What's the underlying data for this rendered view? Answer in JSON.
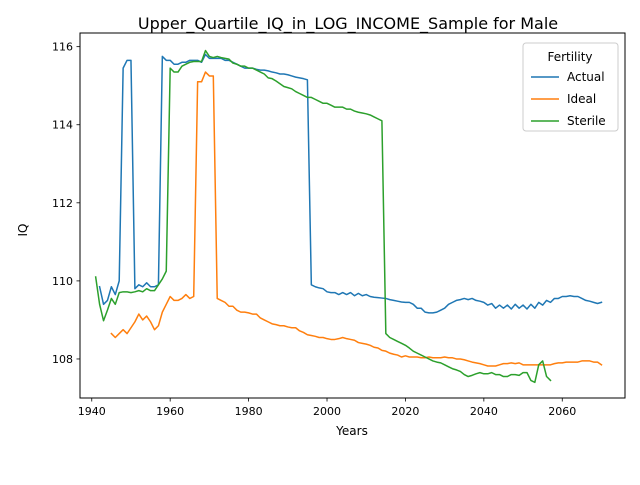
{
  "chart_data": {
    "type": "line",
    "title": "Upper_Quartile_IQ_in_LOG_INCOME_Sample for Male",
    "xlabel": "Years",
    "ylabel": "IQ",
    "xlim": [
      1937,
      2076
    ],
    "ylim": [
      107.0,
      116.35
    ],
    "x_ticks": [
      1940,
      1960,
      1980,
      2000,
      2020,
      2040,
      2060
    ],
    "y_ticks": [
      108,
      110,
      112,
      114,
      116
    ],
    "grid": false,
    "legend": {
      "title": "Fertility",
      "placement": "top-right"
    },
    "colors": {
      "Actual": "#1f77b4",
      "Ideal": "#ff7f0e",
      "Sterile": "#2ca02c"
    },
    "series": [
      {
        "name": "Actual",
        "color": "#1f77b4",
        "x": [
          1942,
          1943,
          1944,
          1945,
          1946,
          1947,
          1948,
          1949,
          1950,
          1951,
          1952,
          1953,
          1954,
          1955,
          1956,
          1957,
          1958,
          1959,
          1960,
          1961,
          1962,
          1963,
          1964,
          1965,
          1966,
          1967,
          1968,
          1969,
          1970,
          1971,
          1972,
          1973,
          1974,
          1975,
          1976,
          1977,
          1978,
          1979,
          1980,
          1981,
          1982,
          1983,
          1984,
          1985,
          1986,
          1987,
          1988,
          1989,
          1990,
          1991,
          1992,
          1993,
          1994,
          1995,
          1996,
          1997,
          1998,
          1999,
          2000,
          2001,
          2002,
          2003,
          2004,
          2005,
          2006,
          2007,
          2008,
          2009,
          2010,
          2011,
          2012,
          2013,
          2014,
          2015,
          2016,
          2017,
          2018,
          2019,
          2020,
          2021,
          2022,
          2023,
          2024,
          2025,
          2026,
          2027,
          2028,
          2029,
          2030,
          2031,
          2032,
          2033,
          2034,
          2035,
          2036,
          2037,
          2038,
          2039,
          2040,
          2041,
          2042,
          2043,
          2044,
          2045,
          2046,
          2047,
          2048,
          2049,
          2050,
          2051,
          2052,
          2053,
          2054,
          2055,
          2056,
          2057,
          2058,
          2059,
          2060,
          2061,
          2062,
          2063,
          2064,
          2065,
          2066,
          2067,
          2068,
          2069,
          2070
        ],
        "values": [
          109.85,
          109.4,
          109.5,
          109.85,
          109.65,
          110.0,
          115.45,
          115.65,
          115.65,
          109.8,
          109.9,
          109.85,
          109.95,
          109.85,
          109.85,
          109.9,
          115.75,
          115.65,
          115.65,
          115.55,
          115.55,
          115.6,
          115.6,
          115.65,
          115.65,
          115.65,
          115.6,
          115.8,
          115.7,
          115.7,
          115.7,
          115.7,
          115.65,
          115.65,
          115.6,
          115.55,
          115.5,
          115.45,
          115.45,
          115.45,
          115.42,
          115.4,
          115.4,
          115.38,
          115.35,
          115.33,
          115.3,
          115.3,
          115.28,
          115.25,
          115.22,
          115.2,
          115.18,
          115.15,
          109.9,
          109.85,
          109.82,
          109.8,
          109.72,
          109.7,
          109.7,
          109.65,
          109.7,
          109.65,
          109.7,
          109.62,
          109.68,
          109.62,
          109.65,
          109.6,
          109.58,
          109.57,
          109.56,
          109.55,
          109.52,
          109.5,
          109.48,
          109.46,
          109.45,
          109.45,
          109.4,
          109.3,
          109.3,
          109.2,
          109.18,
          109.18,
          109.2,
          109.25,
          109.3,
          109.4,
          109.45,
          109.5,
          109.52,
          109.55,
          109.52,
          109.55,
          109.5,
          109.48,
          109.45,
          109.38,
          109.42,
          109.3,
          109.38,
          109.3,
          109.38,
          109.28,
          109.4,
          109.3,
          109.38,
          109.28,
          109.4,
          109.3,
          109.45,
          109.38,
          109.5,
          109.45,
          109.55,
          109.55,
          109.6,
          109.6,
          109.62,
          109.6,
          109.6,
          109.55,
          109.5,
          109.48,
          109.45,
          109.42,
          109.45
        ]
      },
      {
        "name": "Ideal",
        "color": "#ff7f0e",
        "x": [
          1945,
          1946,
          1947,
          1948,
          1949,
          1950,
          1951,
          1952,
          1953,
          1954,
          1955,
          1956,
          1957,
          1958,
          1959,
          1960,
          1961,
          1962,
          1963,
          1964,
          1965,
          1966,
          1967,
          1968,
          1969,
          1970,
          1971,
          1972,
          1973,
          1974,
          1975,
          1976,
          1977,
          1978,
          1979,
          1980,
          1981,
          1982,
          1983,
          1984,
          1985,
          1986,
          1987,
          1988,
          1989,
          1990,
          1991,
          1992,
          1993,
          1994,
          1995,
          1996,
          1997,
          1998,
          1999,
          2000,
          2001,
          2002,
          2003,
          2004,
          2005,
          2006,
          2007,
          2008,
          2009,
          2010,
          2011,
          2012,
          2013,
          2014,
          2015,
          2016,
          2017,
          2018,
          2019,
          2020,
          2021,
          2022,
          2023,
          2024,
          2025,
          2026,
          2027,
          2028,
          2029,
          2030,
          2031,
          2032,
          2033,
          2034,
          2035,
          2036,
          2037,
          2038,
          2039,
          2040,
          2041,
          2042,
          2043,
          2044,
          2045,
          2046,
          2047,
          2048,
          2049,
          2050,
          2051,
          2052,
          2053,
          2054,
          2055,
          2056,
          2057,
          2058,
          2059,
          2060,
          2061,
          2062,
          2063,
          2064,
          2065,
          2066,
          2067,
          2068,
          2069,
          2070
        ],
        "values": [
          108.65,
          108.55,
          108.65,
          108.75,
          108.65,
          108.8,
          108.95,
          109.15,
          109.0,
          109.1,
          108.95,
          108.75,
          108.85,
          109.2,
          109.4,
          109.6,
          109.5,
          109.5,
          109.55,
          109.65,
          109.55,
          109.6,
          115.1,
          115.1,
          115.35,
          115.25,
          115.25,
          109.55,
          109.5,
          109.45,
          109.35,
          109.35,
          109.25,
          109.2,
          109.2,
          109.18,
          109.15,
          109.15,
          109.05,
          109.0,
          108.95,
          108.9,
          108.88,
          108.85,
          108.85,
          108.82,
          108.8,
          108.8,
          108.72,
          108.68,
          108.62,
          108.6,
          108.58,
          108.55,
          108.55,
          108.52,
          108.5,
          108.5,
          108.52,
          108.55,
          108.52,
          108.5,
          108.48,
          108.42,
          108.4,
          108.38,
          108.35,
          108.3,
          108.28,
          108.22,
          108.2,
          108.15,
          108.12,
          108.1,
          108.05,
          108.08,
          108.05,
          108.05,
          108.05,
          108.03,
          108.03,
          108.05,
          108.03,
          108.03,
          108.03,
          108.05,
          108.03,
          108.03,
          108.0,
          108.0,
          107.98,
          107.95,
          107.92,
          107.9,
          107.88,
          107.85,
          107.82,
          107.82,
          107.82,
          107.85,
          107.88,
          107.88,
          107.9,
          107.88,
          107.9,
          107.85,
          107.85,
          107.85,
          107.85,
          107.85,
          107.85,
          107.85,
          107.85,
          107.88,
          107.9,
          107.9,
          107.92,
          107.92,
          107.92,
          107.92,
          107.95,
          107.95,
          107.95,
          107.92,
          107.92,
          107.85
        ]
      },
      {
        "name": "Sterile",
        "color": "#2ca02c",
        "x": [
          1941,
          1942,
          1943,
          1944,
          1945,
          1946,
          1947,
          1948,
          1949,
          1950,
          1951,
          1952,
          1953,
          1954,
          1955,
          1956,
          1957,
          1958,
          1959,
          1960,
          1961,
          1962,
          1963,
          1964,
          1965,
          1966,
          1967,
          1968,
          1969,
          1970,
          1971,
          1972,
          1973,
          1974,
          1975,
          1976,
          1977,
          1978,
          1979,
          1980,
          1981,
          1982,
          1983,
          1984,
          1985,
          1986,
          1987,
          1988,
          1989,
          1990,
          1991,
          1992,
          1993,
          1994,
          1995,
          1996,
          1997,
          1998,
          1999,
          2000,
          2001,
          2002,
          2003,
          2004,
          2005,
          2006,
          2007,
          2008,
          2009,
          2010,
          2011,
          2012,
          2013,
          2014,
          2015,
          2016,
          2017,
          2018,
          2019,
          2020,
          2021,
          2022,
          2023,
          2024,
          2025,
          2026,
          2027,
          2028,
          2029,
          2030,
          2031,
          2032,
          2033,
          2034,
          2035,
          2036,
          2037,
          2038,
          2039,
          2040,
          2041,
          2042,
          2043,
          2044,
          2045,
          2046,
          2047,
          2048,
          2049,
          2050,
          2051,
          2052,
          2053,
          2054,
          2055,
          2056,
          2057
        ],
        "values": [
          110.1,
          109.4,
          108.98,
          109.25,
          109.55,
          109.4,
          109.7,
          109.72,
          109.72,
          109.7,
          109.72,
          109.75,
          109.72,
          109.8,
          109.75,
          109.75,
          109.9,
          110.05,
          110.25,
          115.45,
          115.35,
          115.35,
          115.5,
          115.55,
          115.6,
          115.62,
          115.62,
          115.62,
          115.9,
          115.75,
          115.72,
          115.75,
          115.72,
          115.7,
          115.68,
          115.58,
          115.55,
          115.5,
          115.5,
          115.45,
          115.45,
          115.4,
          115.35,
          115.3,
          115.2,
          115.18,
          115.12,
          115.05,
          114.98,
          114.95,
          114.92,
          114.85,
          114.8,
          114.75,
          114.7,
          114.7,
          114.65,
          114.6,
          114.55,
          114.55,
          114.5,
          114.45,
          114.45,
          114.45,
          114.4,
          114.4,
          114.35,
          114.32,
          114.3,
          114.28,
          114.25,
          114.2,
          114.15,
          114.1,
          108.65,
          108.55,
          108.5,
          108.45,
          108.4,
          108.35,
          108.28,
          108.2,
          108.15,
          108.1,
          108.05,
          108.0,
          107.95,
          107.92,
          107.9,
          107.85,
          107.8,
          107.75,
          107.72,
          107.68,
          107.6,
          107.55,
          107.58,
          107.62,
          107.65,
          107.62,
          107.62,
          107.65,
          107.6,
          107.6,
          107.55,
          107.55,
          107.6,
          107.6,
          107.58,
          107.65,
          107.65,
          107.45,
          107.4,
          107.85,
          107.95,
          107.55,
          107.45
        ]
      }
    ]
  }
}
